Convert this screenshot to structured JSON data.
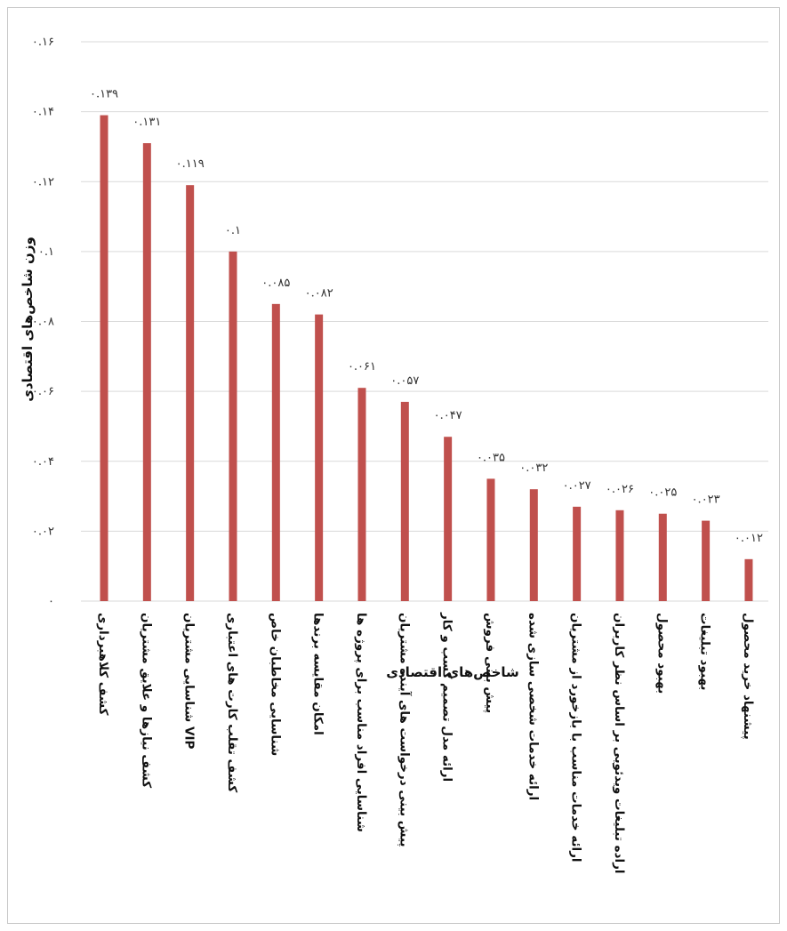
{
  "chart_data": {
    "type": "bar",
    "xlabel": "شاخص‌های اقتصادی",
    "ylabel": "وزن شاخص‌های اقتصادی",
    "ylim": [
      0,
      0.16
    ],
    "y_ticks": [
      {
        "value": 0,
        "label": "۰"
      },
      {
        "value": 0.02,
        "label": "۰.۰۲"
      },
      {
        "value": 0.04,
        "label": "۰.۰۴"
      },
      {
        "value": 0.06,
        "label": "۰.۰۶"
      },
      {
        "value": 0.08,
        "label": "۰.۰۸"
      },
      {
        "value": 0.1,
        "label": "۰.۱"
      },
      {
        "value": 0.12,
        "label": "۰.۱۲"
      },
      {
        "value": 0.14,
        "label": "۰.۱۴"
      },
      {
        "value": 0.16,
        "label": "۰.۱۶"
      }
    ],
    "grid": true,
    "bar_color": "#c0504d",
    "categories": [
      "کشف کلاهبرداری",
      "کشف نیازها و علایق مشتریان",
      "شناسایی مشتریان VIP",
      "کشف تقلب کارت های اعتباری",
      "شناسایی مخاطبان خاص",
      "امکان مقایسه برندها",
      "شناسایی افراد مناسب برای پروژه ها",
      "پیش بینی درخواست های آینده مشتریان",
      "ارائه مدل تصمیم کسب و کار",
      "پیش بینی فروش",
      "ارائه خدمات شخصی سازی شده",
      "ارائه خدمات مناسب با بازخورد از مشتریان",
      "اراده تبلیغات ویدئویی بر اساس نظر کاربران",
      "بهبود محصول",
      "بهبود تبلیغات",
      "پیشنهاد خرید محصول"
    ],
    "values": [
      0.139,
      0.131,
      0.119,
      0.1,
      0.085,
      0.082,
      0.061,
      0.057,
      0.047,
      0.035,
      0.032,
      0.027,
      0.026,
      0.025,
      0.023,
      0.012
    ],
    "value_labels": [
      "۰.۱۳۹",
      "۰.۱۳۱",
      "۰.۱۱۹",
      "۰.۱",
      "۰.۰۸۵",
      "۰.۰۸۲",
      "۰.۰۶۱",
      "۰.۰۵۷",
      "۰.۰۴۷",
      "۰.۰۳۵",
      "۰.۰۳۲",
      "۰.۰۲۷",
      "۰.۰۲۶",
      "۰.۰۲۵",
      "۰.۰۲۳",
      "۰.۰۱۲"
    ]
  }
}
